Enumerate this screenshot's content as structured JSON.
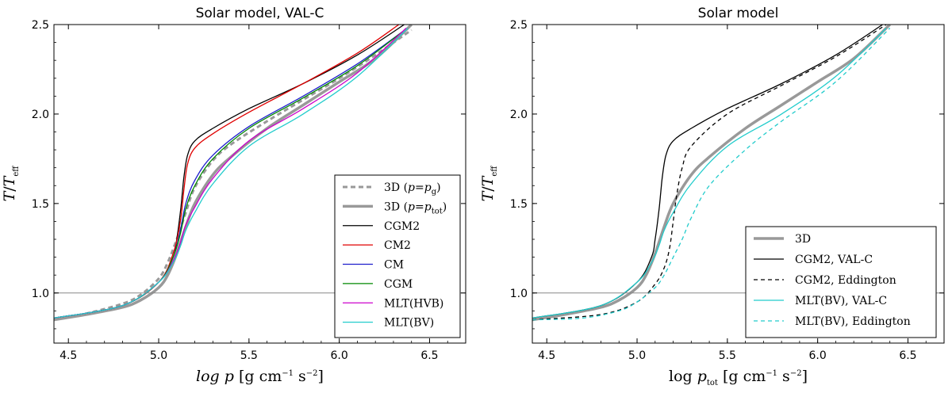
{
  "chart_data": [
    {
      "type": "line",
      "title": "Solar model, VAL-C",
      "xlabel": "log p [g cm⁻¹ s⁻²]",
      "ylabel": "T/T_eff",
      "xlim": [
        4.42,
        6.7
      ],
      "ylim": [
        0.72,
        2.5
      ],
      "xticks": [
        "4.5",
        "5.0",
        "5.5",
        "6.0",
        "6.5"
      ],
      "yticks": [
        "1.0",
        "1.5",
        "2.0",
        "2.5"
      ],
      "reference_line": 1.0,
      "legend_position": "lower right",
      "series": [
        {
          "name": "3D (p=p_g)",
          "legend": {
            "base": "3D (",
            "var": "p",
            "eq": "=",
            "var2": "p",
            "sub": "g",
            "end": ")"
          },
          "color": "#999999",
          "width": 3,
          "dash": "6,4",
          "x": [
            4.42,
            4.6,
            4.8,
            4.9,
            5.0,
            5.05,
            5.1,
            5.15,
            5.2,
            5.3,
            5.4,
            5.6,
            5.8,
            6.0,
            6.2,
            6.4
          ],
          "y": [
            0.85,
            0.885,
            0.94,
            0.99,
            1.08,
            1.17,
            1.3,
            1.45,
            1.59,
            1.74,
            1.83,
            1.96,
            2.08,
            2.2,
            2.33,
            2.47
          ]
        },
        {
          "name": "3D (p=p_tot)",
          "legend": {
            "base": "3D (",
            "var": "p",
            "eq": "=",
            "var2": "p",
            "sub": "tot",
            "end": ")"
          },
          "color": "#999999",
          "width": 3.5,
          "dash": "",
          "x": [
            4.42,
            4.6,
            4.8,
            4.9,
            5.0,
            5.05,
            5.1,
            5.15,
            5.2,
            5.3,
            5.4,
            5.6,
            5.8,
            6.0,
            6.2,
            6.4
          ],
          "y": [
            0.85,
            0.88,
            0.92,
            0.96,
            1.03,
            1.1,
            1.22,
            1.37,
            1.5,
            1.66,
            1.76,
            1.92,
            2.05,
            2.18,
            2.31,
            2.5
          ]
        },
        {
          "name": "CGM2",
          "legend": {
            "base": "CGM2"
          },
          "color": "#000000",
          "width": 1.3,
          "dash": "",
          "x": [
            4.42,
            4.8,
            5.0,
            5.08,
            5.1,
            5.12,
            5.13,
            5.14,
            5.16,
            5.2,
            5.3,
            5.5,
            5.8,
            6.1,
            6.36
          ],
          "y": [
            0.86,
            0.93,
            1.06,
            1.2,
            1.3,
            1.45,
            1.55,
            1.65,
            1.77,
            1.85,
            1.92,
            2.03,
            2.17,
            2.33,
            2.5
          ]
        },
        {
          "name": "CM2",
          "legend": {
            "base": "CM2"
          },
          "color": "#e00000",
          "width": 1.3,
          "dash": "",
          "x": [
            4.42,
            4.8,
            5.0,
            5.08,
            5.12,
            5.14,
            5.16,
            5.2,
            5.3,
            5.5,
            5.8,
            6.1,
            6.33
          ],
          "y": [
            0.86,
            0.93,
            1.06,
            1.22,
            1.4,
            1.58,
            1.72,
            1.81,
            1.89,
            2.01,
            2.17,
            2.34,
            2.5
          ]
        },
        {
          "name": "CM",
          "legend": {
            "base": "CM"
          },
          "color": "#1f1fcc",
          "width": 1.3,
          "dash": "",
          "x": [
            4.42,
            4.8,
            5.0,
            5.08,
            5.12,
            5.15,
            5.2,
            5.3,
            5.5,
            5.8,
            6.1,
            6.35
          ],
          "y": [
            0.86,
            0.93,
            1.06,
            1.2,
            1.35,
            1.5,
            1.63,
            1.77,
            1.93,
            2.1,
            2.28,
            2.46
          ]
        },
        {
          "name": "CGM",
          "legend": {
            "base": "CGM"
          },
          "color": "#008800",
          "width": 1.3,
          "dash": "",
          "x": [
            4.42,
            4.8,
            5.0,
            5.08,
            5.12,
            5.15,
            5.2,
            5.3,
            5.5,
            5.8,
            6.1,
            6.35
          ],
          "y": [
            0.86,
            0.93,
            1.06,
            1.2,
            1.33,
            1.47,
            1.6,
            1.75,
            1.92,
            2.09,
            2.27,
            2.46
          ]
        },
        {
          "name": "MLT(HVB)",
          "legend": {
            "base": "MLT(HVB)"
          },
          "color": "#cc00cc",
          "width": 1.3,
          "dash": "",
          "x": [
            4.42,
            4.8,
            5.0,
            5.08,
            5.12,
            5.15,
            5.2,
            5.3,
            5.5,
            5.8,
            6.1,
            6.37
          ],
          "y": [
            0.86,
            0.93,
            1.06,
            1.18,
            1.28,
            1.38,
            1.48,
            1.64,
            1.85,
            2.03,
            2.23,
            2.48
          ]
        },
        {
          "name": "MLT(BV)",
          "legend": {
            "base": "MLT(BV)"
          },
          "color": "#22cccc",
          "width": 1.3,
          "dash": "",
          "x": [
            4.42,
            4.8,
            5.0,
            5.08,
            5.12,
            5.15,
            5.2,
            5.3,
            5.5,
            5.8,
            6.1,
            6.38
          ],
          "y": [
            0.86,
            0.93,
            1.06,
            1.17,
            1.26,
            1.35,
            1.45,
            1.61,
            1.82,
            2.0,
            2.21,
            2.48
          ]
        }
      ]
    },
    {
      "type": "line",
      "title": "Solar model",
      "xlabel": "log p_tot [g cm⁻¹ s⁻²]",
      "ylabel": "T/T_eff",
      "xlim": [
        4.42,
        6.7
      ],
      "ylim": [
        0.72,
        2.5
      ],
      "xticks": [
        "4.5",
        "5.0",
        "5.5",
        "6.0",
        "6.5"
      ],
      "yticks": [
        "1.0",
        "1.5",
        "2.0",
        "2.5"
      ],
      "reference_line": 1.0,
      "legend_position": "lower right",
      "series": [
        {
          "name": "3D",
          "legend": {
            "base": "3D"
          },
          "color": "#999999",
          "width": 3.5,
          "dash": "",
          "x": [
            4.42,
            4.6,
            4.8,
            4.9,
            5.0,
            5.05,
            5.1,
            5.15,
            5.2,
            5.3,
            5.4,
            5.6,
            5.8,
            6.0,
            6.2,
            6.4
          ],
          "y": [
            0.85,
            0.88,
            0.92,
            0.96,
            1.03,
            1.1,
            1.22,
            1.37,
            1.5,
            1.66,
            1.76,
            1.92,
            2.05,
            2.18,
            2.31,
            2.5
          ]
        },
        {
          "name": "CGM2, VAL-C",
          "legend": {
            "base": "CGM2, VAL-C"
          },
          "color": "#000000",
          "width": 1.3,
          "dash": "",
          "x": [
            4.42,
            4.8,
            5.0,
            5.08,
            5.1,
            5.12,
            5.13,
            5.14,
            5.16,
            5.2,
            5.3,
            5.5,
            5.8,
            6.1,
            6.36
          ],
          "y": [
            0.86,
            0.93,
            1.06,
            1.2,
            1.3,
            1.45,
            1.55,
            1.65,
            1.77,
            1.85,
            1.92,
            2.03,
            2.17,
            2.33,
            2.5
          ]
        },
        {
          "name": "CGM2, Eddington",
          "legend": {
            "base": "CGM2, Eddington"
          },
          "color": "#000000",
          "width": 1.3,
          "dash": "5,4",
          "x": [
            4.42,
            4.8,
            5.0,
            5.1,
            5.15,
            5.18,
            5.2,
            5.22,
            5.25,
            5.3,
            5.5,
            5.8,
            6.1,
            6.38
          ],
          "y": [
            0.85,
            0.88,
            0.95,
            1.05,
            1.14,
            1.25,
            1.4,
            1.55,
            1.7,
            1.82,
            2.0,
            2.16,
            2.32,
            2.5
          ]
        },
        {
          "name": "MLT(BV), VAL-C",
          "legend": {
            "base": "MLT(BV), VAL-C"
          },
          "color": "#22cccc",
          "width": 1.3,
          "dash": "",
          "x": [
            4.42,
            4.8,
            5.0,
            5.08,
            5.12,
            5.15,
            5.2,
            5.3,
            5.5,
            5.8,
            6.1,
            6.38
          ],
          "y": [
            0.86,
            0.93,
            1.06,
            1.17,
            1.26,
            1.35,
            1.45,
            1.61,
            1.82,
            2.0,
            2.21,
            2.48
          ]
        },
        {
          "name": "MLT(BV), Eddington",
          "legend": {
            "base": "MLT(BV), Eddington"
          },
          "color": "#22cccc",
          "width": 1.3,
          "dash": "5,4",
          "x": [
            4.42,
            4.7,
            4.9,
            5.0,
            5.1,
            5.15,
            5.2,
            5.25,
            5.3,
            5.4,
            5.6,
            5.8,
            6.1,
            6.4
          ],
          "y": [
            0.85,
            0.86,
            0.9,
            0.95,
            1.03,
            1.1,
            1.2,
            1.3,
            1.42,
            1.6,
            1.8,
            1.96,
            2.18,
            2.48
          ]
        }
      ]
    }
  ]
}
